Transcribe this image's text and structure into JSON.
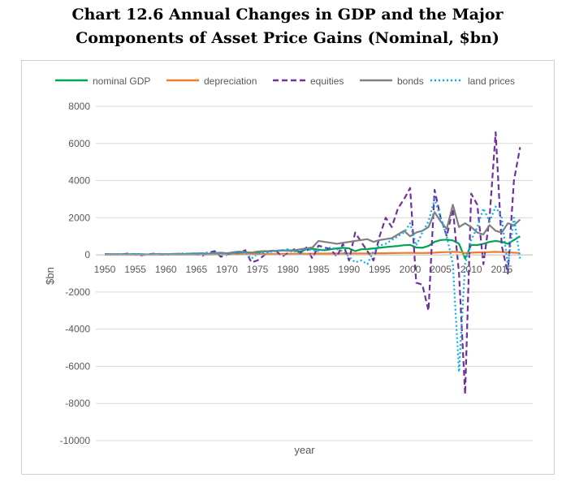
{
  "title_line1": "Chart 12.6  Annual Changes in GDP and the Major",
  "title_line2": "Components of Asset Price Gains (Nominal, $bn)",
  "chart_data": {
    "type": "line",
    "title": "Chart 12.6  Annual Changes in GDP and the Major Components of Asset Price Gains (Nominal, $bn)",
    "xlabel": "year",
    "ylabel": "$bn",
    "xlim": [
      1950,
      2018
    ],
    "ylim": [
      -10000,
      8000
    ],
    "yticks": [
      8000,
      6000,
      4000,
      2000,
      0,
      -2000,
      -4000,
      -6000,
      -8000,
      -10000
    ],
    "xticks": [
      1950,
      1955,
      1960,
      1965,
      1970,
      1975,
      1980,
      1985,
      1990,
      1995,
      2000,
      2005,
      2010,
      2015
    ],
    "legend_position": "top",
    "grid": true,
    "x": [
      1950,
      1951,
      1952,
      1953,
      1954,
      1955,
      1956,
      1957,
      1958,
      1959,
      1960,
      1961,
      1962,
      1963,
      1964,
      1965,
      1966,
      1967,
      1968,
      1969,
      1970,
      1971,
      1972,
      1973,
      1974,
      1975,
      1976,
      1977,
      1978,
      1979,
      1980,
      1981,
      1982,
      1983,
      1984,
      1985,
      1986,
      1987,
      1988,
      1989,
      1990,
      1991,
      1992,
      1993,
      1994,
      1995,
      1996,
      1997,
      1998,
      1999,
      2000,
      2001,
      2002,
      2003,
      2004,
      2005,
      2006,
      2007,
      2008,
      2009,
      2010,
      2011,
      2012,
      2013,
      2014,
      2015,
      2016,
      2017,
      2018
    ],
    "series": [
      {
        "name": "nominal GDP",
        "color": "#00a550",
        "dash": "solid",
        "values": [
          30,
          35,
          25,
          30,
          10,
          40,
          30,
          25,
          10,
          50,
          30,
          25,
          45,
          35,
          50,
          60,
          70,
          55,
          75,
          80,
          60,
          100,
          120,
          140,
          120,
          120,
          180,
          200,
          220,
          230,
          250,
          230,
          170,
          300,
          330,
          280,
          250,
          300,
          350,
          380,
          350,
          200,
          300,
          310,
          350,
          380,
          420,
          450,
          480,
          520,
          540,
          400,
          380,
          480,
          700,
          800,
          820,
          780,
          600,
          -200,
          540,
          530,
          600,
          700,
          750,
          700,
          600,
          800,
          1000
        ]
      },
      {
        "name": "depreciation",
        "color": "#ed7d31",
        "dash": "solid",
        "values": [
          5,
          5,
          5,
          5,
          5,
          5,
          5,
          5,
          5,
          5,
          10,
          10,
          10,
          10,
          10,
          15,
          15,
          15,
          20,
          20,
          20,
          25,
          25,
          30,
          35,
          40,
          40,
          45,
          50,
          55,
          60,
          60,
          60,
          60,
          65,
          70,
          70,
          75,
          80,
          80,
          80,
          80,
          80,
          80,
          85,
          90,
          90,
          95,
          100,
          105,
          110,
          100,
          100,
          110,
          120,
          140,
          150,
          160,
          150,
          100,
          120,
          130,
          140,
          150,
          160,
          150,
          140,
          120,
          100
        ]
      },
      {
        "name": "equities",
        "color": "#7030a0",
        "dash": "dash",
        "values": [
          50,
          20,
          30,
          40,
          80,
          20,
          -20,
          30,
          60,
          20,
          -10,
          50,
          20,
          40,
          60,
          30,
          -40,
          120,
          200,
          -100,
          0,
          100,
          150,
          250,
          -400,
          -300,
          -50,
          200,
          250,
          -100,
          100,
          300,
          100,
          400,
          -200,
          500,
          400,
          300,
          -100,
          600,
          -300,
          1200,
          700,
          200,
          -300,
          1000,
          2000,
          1500,
          2500,
          3000,
          3600,
          -1500,
          -1600,
          -3000,
          3500,
          2000,
          1000,
          2500,
          -1000,
          -7500,
          3300,
          2700,
          -500,
          2000,
          6600,
          500,
          -1000,
          4000,
          5800
        ]
      },
      {
        "name": "bonds",
        "color": "#808080",
        "dash": "solid",
        "values": [
          30,
          30,
          40,
          30,
          30,
          40,
          30,
          20,
          40,
          50,
          40,
          50,
          60,
          50,
          70,
          80,
          90,
          60,
          100,
          120,
          90,
          140,
          180,
          150,
          120,
          180,
          200,
          200,
          220,
          250,
          220,
          250,
          300,
          350,
          400,
          750,
          700,
          650,
          600,
          650,
          700,
          750,
          800,
          850,
          700,
          800,
          850,
          900,
          1100,
          1300,
          1000,
          1200,
          1300,
          1500,
          2300,
          1800,
          1400,
          2700,
          1500,
          1700,
          1500,
          1200,
          1100,
          1600,
          1300,
          1200,
          1700,
          1600,
          1900
        ]
      },
      {
        "name": "land prices",
        "color": "#00b0f0",
        "dash": "dot",
        "values": [
          20,
          10,
          30,
          20,
          40,
          50,
          30,
          20,
          30,
          40,
          50,
          30,
          60,
          80,
          50,
          100,
          70,
          150,
          80,
          100,
          30,
          100,
          150,
          100,
          -200,
          50,
          100,
          150,
          200,
          250,
          300,
          200,
          100,
          300,
          250,
          200,
          300,
          400,
          300,
          200,
          -100,
          -400,
          -300,
          -500,
          200,
          500,
          600,
          800,
          1000,
          1200,
          1700,
          500,
          1200,
          1800,
          3000,
          2000,
          1000,
          -500,
          -6300,
          -500,
          800,
          1500,
          2500,
          1800,
          2600,
          2000,
          -600,
          2000,
          -200
        ]
      }
    ]
  }
}
